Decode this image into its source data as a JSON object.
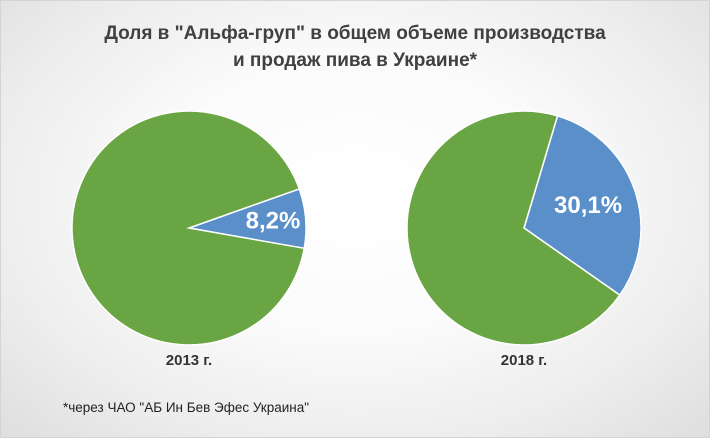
{
  "chart_data": {
    "type": "pie",
    "title_line1": "Доля в \"Альфа-груп\" в общем объеме производства",
    "title_line2": "и продаж пива в Украине*",
    "pies": [
      {
        "label": "2013 г.",
        "slices": [
          {
            "value": 8.2,
            "label": "8,2%",
            "color": "#5b8fc9"
          },
          {
            "value": 91.8,
            "label": "",
            "color": "#6aa544"
          }
        ]
      },
      {
        "label": "2018 г.",
        "slices": [
          {
            "value": 30.1,
            "label": "30,1%",
            "color": "#5b8fc9"
          },
          {
            "value": 69.9,
            "label": "",
            "color": "#6aa544"
          }
        ]
      }
    ],
    "footnote": "*через ЧАО \"АБ Ин Бев Эфес Украина\""
  }
}
